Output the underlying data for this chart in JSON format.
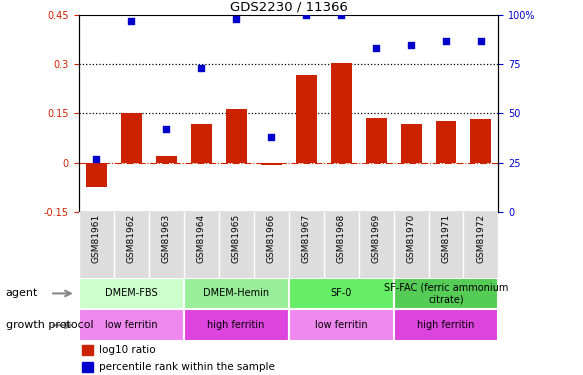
{
  "title": "GDS2230 / 11366",
  "samples": [
    "GSM81961",
    "GSM81962",
    "GSM81963",
    "GSM81964",
    "GSM81965",
    "GSM81966",
    "GSM81967",
    "GSM81968",
    "GSM81969",
    "GSM81970",
    "GSM81971",
    "GSM81972"
  ],
  "log10_ratio": [
    -0.075,
    0.152,
    0.02,
    0.118,
    0.163,
    -0.008,
    0.268,
    0.305,
    0.135,
    0.118,
    0.128,
    0.132
  ],
  "percentile_rank": [
    27,
    97,
    42,
    73,
    98,
    38,
    100,
    100,
    83,
    85,
    87,
    87
  ],
  "bar_color": "#cc2200",
  "dot_color": "#0000cc",
  "hline_color": "#cc2200",
  "dotted_line_color": "#000000",
  "ylim_left": [
    -0.15,
    0.45
  ],
  "ylim_right": [
    0,
    100
  ],
  "yticks_left": [
    -0.15,
    0.0,
    0.15,
    0.3,
    0.45
  ],
  "yticks_right": [
    0,
    25,
    50,
    75,
    100
  ],
  "ytick_labels_left": [
    "-0.15",
    "0",
    "0.15",
    "0.3",
    "0.45"
  ],
  "ytick_labels_right": [
    "0",
    "25",
    "50",
    "75",
    "100%"
  ],
  "hlines_dotted": [
    0.15,
    0.3
  ],
  "agent_groups": [
    {
      "label": "DMEM-FBS",
      "start": 0,
      "end": 3,
      "color": "#ccffcc"
    },
    {
      "label": "DMEM-Hemin",
      "start": 3,
      "end": 6,
      "color": "#99ee99"
    },
    {
      "label": "SF-0",
      "start": 6,
      "end": 9,
      "color": "#66ee66"
    },
    {
      "label": "SF-FAC (ferric ammonium\ncitrate)",
      "start": 9,
      "end": 12,
      "color": "#55cc55"
    }
  ],
  "protocol_groups": [
    {
      "label": "low ferritin",
      "start": 0,
      "end": 3,
      "color": "#ee88ee"
    },
    {
      "label": "high ferritin",
      "start": 3,
      "end": 6,
      "color": "#dd44dd"
    },
    {
      "label": "low ferritin",
      "start": 6,
      "end": 9,
      "color": "#ee88ee"
    },
    {
      "label": "high ferritin",
      "start": 9,
      "end": 12,
      "color": "#dd44dd"
    }
  ],
  "legend_bar_label": "log10 ratio",
  "legend_dot_label": "percentile rank within the sample",
  "agent_row_label": "agent",
  "protocol_row_label": "growth protocol"
}
